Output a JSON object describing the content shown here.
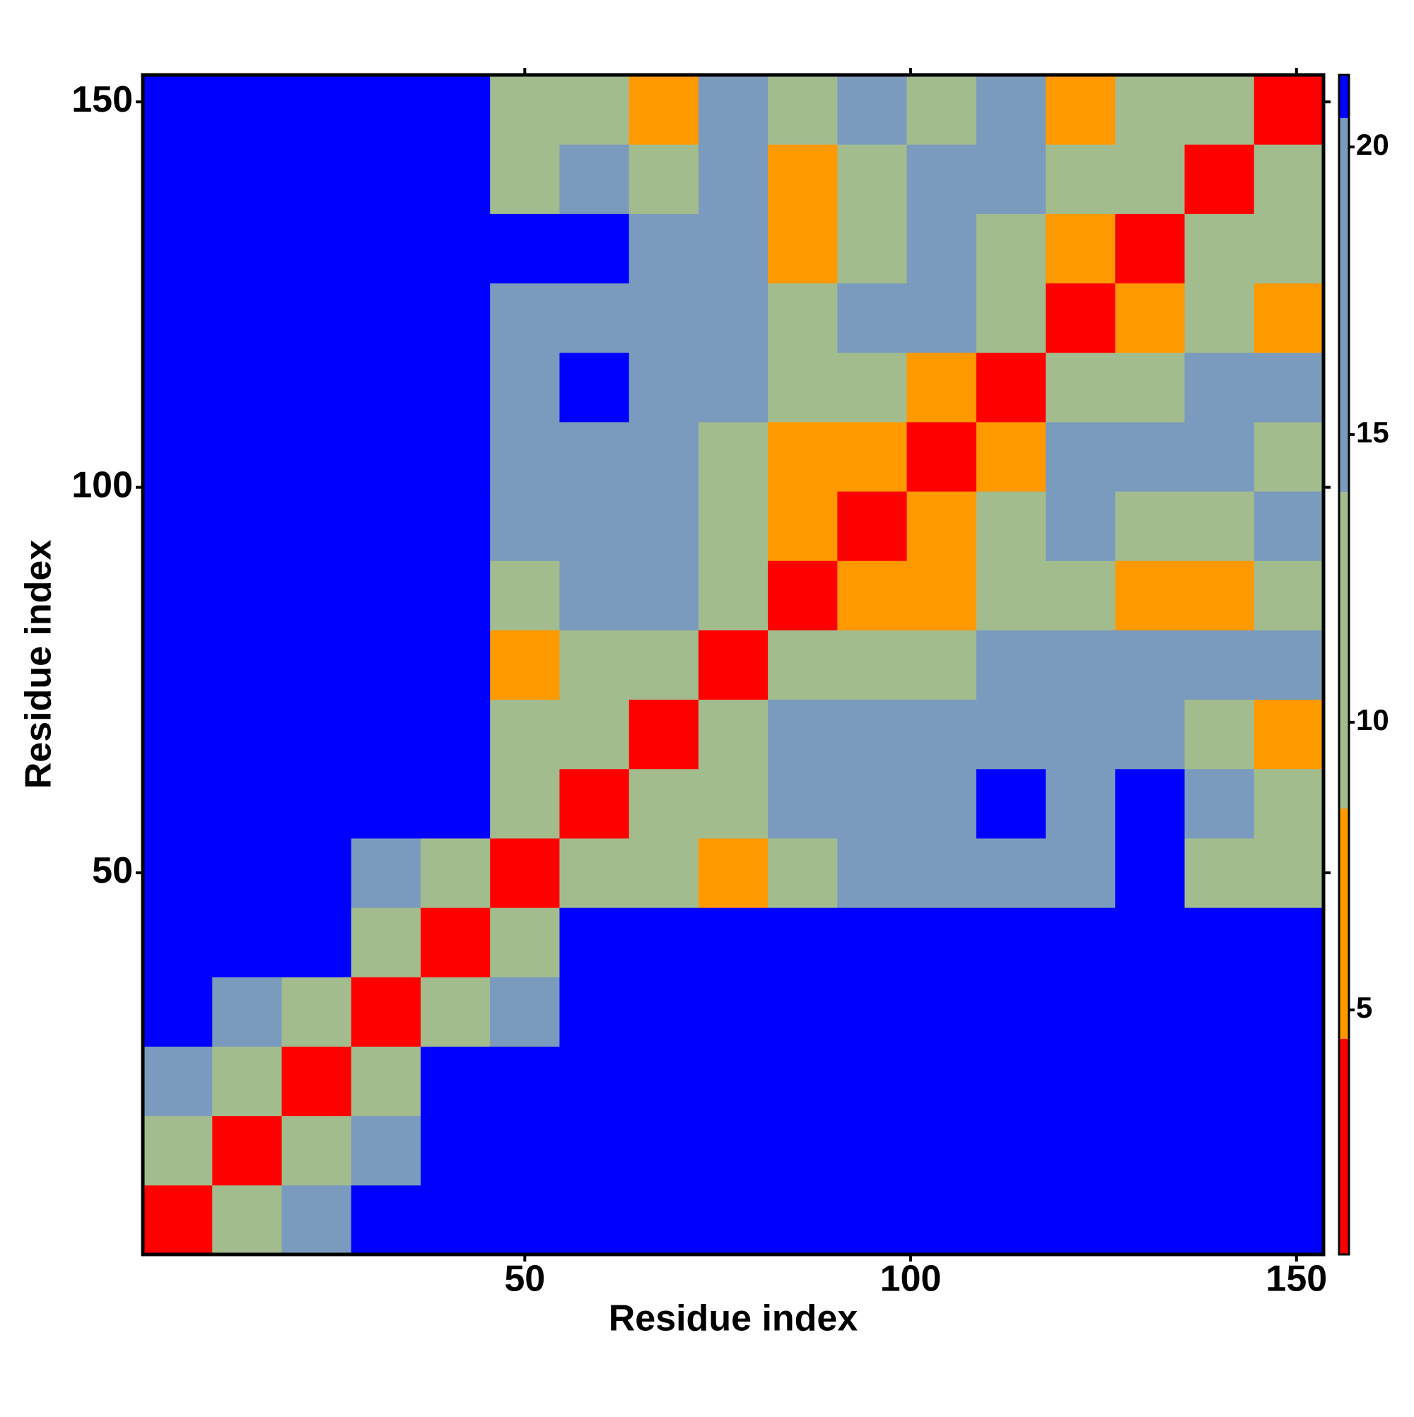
{
  "chart_data": {
    "type": "heatmap",
    "xlabel": "Residue index",
    "ylabel": "Residue index",
    "xbins": [
      0.5,
      9.5,
      18.5,
      27.5,
      36.5,
      45.5,
      54.5,
      63.5,
      72.5,
      81.5,
      90.5,
      99.5,
      108.5,
      117.5,
      126.5,
      135.5,
      144.5,
      153.5
    ],
    "ybins": [
      0.5,
      9.5,
      18.5,
      27.5,
      36.5,
      45.5,
      54.5,
      63.5,
      72.5,
      81.5,
      90.5,
      99.5,
      108.5,
      117.5,
      126.5,
      135.5,
      144.5,
      153.5
    ],
    "values": [
      [
        4,
        9,
        15,
        22,
        22,
        22,
        22,
        22,
        22,
        22,
        22,
        22,
        22,
        22,
        22,
        22,
        22
      ],
      [
        9,
        4,
        9,
        18,
        22,
        22,
        22,
        22,
        22,
        22,
        22,
        22,
        22,
        22,
        22,
        22,
        22
      ],
      [
        15,
        9,
        4,
        9,
        22,
        22,
        22,
        22,
        22,
        22,
        22,
        22,
        22,
        22,
        22,
        22,
        22
      ],
      [
        22,
        18,
        9,
        4,
        9,
        17,
        22,
        22,
        22,
        22,
        22,
        22,
        22,
        22,
        22,
        22,
        22
      ],
      [
        22,
        22,
        22,
        9,
        4,
        9,
        22,
        22,
        22,
        22,
        22,
        22,
        22,
        22,
        22,
        22,
        22
      ],
      [
        22,
        22,
        22,
        17,
        9,
        4,
        9,
        11,
        8,
        12,
        18,
        14,
        18,
        18,
        22,
        11,
        9
      ],
      [
        22,
        22,
        22,
        22,
        22,
        9,
        4,
        9,
        11,
        14,
        19,
        17,
        21,
        19,
        22,
        14,
        13
      ],
      [
        22,
        22,
        22,
        22,
        22,
        11,
        9,
        4,
        9,
        15,
        16,
        14,
        18,
        17,
        18,
        13,
        7
      ],
      [
        22,
        22,
        22,
        22,
        22,
        8,
        11,
        9,
        4,
        9,
        13,
        13,
        16,
        16,
        15,
        16,
        16
      ],
      [
        22,
        22,
        22,
        22,
        22,
        12,
        14,
        15,
        9,
        4,
        8,
        8,
        11,
        12,
        8,
        8,
        12
      ],
      [
        22,
        22,
        22,
        22,
        22,
        18,
        19,
        16,
        13,
        8,
        4,
        8,
        13,
        14,
        12,
        13,
        14
      ],
      [
        22,
        22,
        22,
        22,
        22,
        14,
        17,
        14,
        13,
        8,
        8,
        4,
        8,
        16,
        14,
        15,
        13
      ],
      [
        22,
        22,
        22,
        22,
        22,
        18,
        21,
        18,
        16,
        11,
        13,
        8,
        4,
        12,
        13,
        14,
        15
      ],
      [
        22,
        22,
        22,
        22,
        22,
        18,
        19,
        17,
        16,
        12,
        14,
        16,
        12,
        4,
        8,
        10,
        8
      ],
      [
        22,
        22,
        22,
        22,
        22,
        22,
        22,
        18,
        15,
        8,
        12,
        14,
        13,
        8,
        4,
        9,
        12
      ],
      [
        22,
        22,
        22,
        22,
        22,
        11,
        14,
        13,
        16,
        8,
        13,
        15,
        14,
        10,
        9,
        4,
        9
      ],
      [
        22,
        22,
        22,
        22,
        22,
        9,
        13,
        7,
        16,
        12,
        14,
        13,
        15,
        8,
        12,
        9,
        4
      ]
    ],
    "xlim": [
      0.5,
      153.5
    ],
    "ylim": [
      0.5,
      153.5
    ],
    "xticks": [
      50,
      100,
      150
    ],
    "yticks": [
      50,
      100,
      150
    ],
    "clim": [
      0.75,
      21.25
    ],
    "cticks": [
      5,
      10,
      15,
      20
    ],
    "colorscale": [
      [
        0.75,
        "#ff0000"
      ],
      [
        4.5,
        "#ff9900"
      ],
      [
        8.5,
        "#a3bc8e"
      ],
      [
        14,
        "#7a9bbd"
      ],
      [
        20.5,
        "#0000ff"
      ]
    ]
  }
}
